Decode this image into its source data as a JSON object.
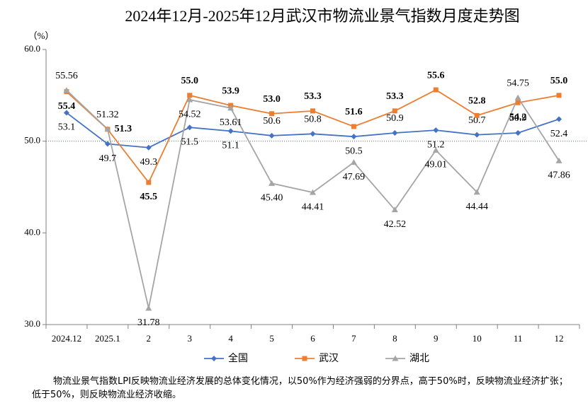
{
  "chart_data": {
    "type": "line",
    "title": "2024年12月-2025年12月武汉市物流业景气指数月度走势图",
    "y_unit": "（%）",
    "categories": [
      "2024.12",
      "2025.1",
      "2",
      "3",
      "4",
      "5",
      "6",
      "7",
      "8",
      "9",
      "10",
      "11",
      "12"
    ],
    "series": [
      {
        "name": "全国",
        "color": "#4472c4",
        "marker": "diamond",
        "bold_labels": false,
        "values": [
          53.1,
          49.7,
          49.3,
          51.5,
          51.1,
          50.6,
          50.8,
          50.5,
          50.9,
          51.2,
          50.7,
          50.9,
          52.4
        ]
      },
      {
        "name": "武汉",
        "color": "#ed7d31",
        "marker": "square",
        "bold_labels": true,
        "values": [
          55.4,
          51.3,
          45.5,
          55.0,
          53.9,
          53.0,
          53.3,
          51.6,
          53.3,
          55.6,
          52.8,
          54.2,
          55.0
        ],
        "value_labels": [
          "55.4",
          "51.3",
          "45.5",
          "55.0",
          "53.9",
          "53.0",
          "53.3",
          "51.6",
          "53.3",
          "55.6",
          "52.8",
          "54.2",
          "55.0"
        ]
      },
      {
        "name": "湖北",
        "color": "#a5a5a5",
        "marker": "triangle",
        "bold_labels": false,
        "values": [
          55.56,
          51.32,
          31.78,
          54.52,
          53.61,
          45.4,
          44.41,
          47.69,
          42.52,
          49.01,
          44.44,
          54.75,
          47.86
        ],
        "value_labels": [
          "55.56",
          "51.32",
          "31.78",
          "54.52",
          "53.61",
          "45.40",
          "44.41",
          "47.69",
          "42.52",
          "49.01",
          "44.44",
          "54.75",
          "47.86"
        ]
      }
    ],
    "ylim": [
      30,
      60
    ],
    "yticks": [
      {
        "value": 30,
        "label": "30.0"
      },
      {
        "value": 40,
        "label": "40.0"
      },
      {
        "value": 50,
        "label": "50.0"
      },
      {
        "value": 60,
        "label": "60.0"
      }
    ],
    "reference_line": 50,
    "legend": "bottom",
    "note": "物流业景气指数LPI反映物流业经济发展的总体变化情况，以50%作为经济强弱的分界点，高于50%时，反映物流业经济扩张；低于50%，则反映物流业经济收缩。"
  }
}
